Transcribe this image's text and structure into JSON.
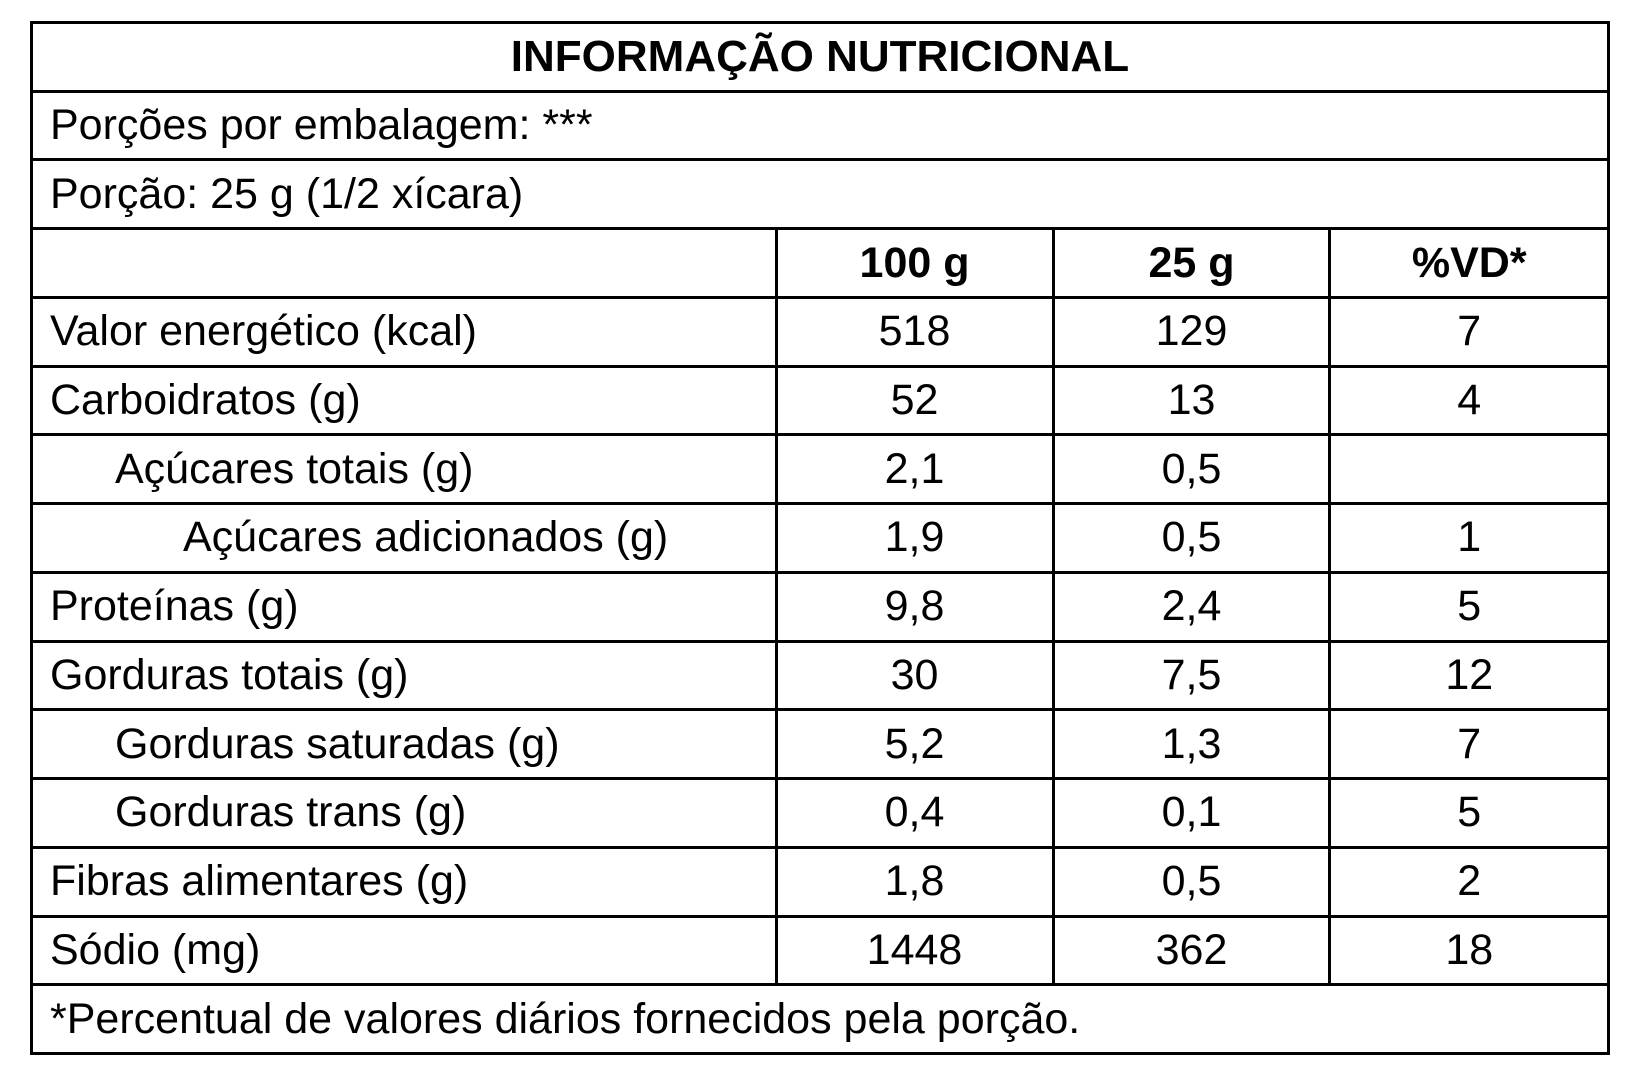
{
  "title": "INFORMAÇÃO NUTRICIONAL",
  "servings_per_package": "Porções por embalagem: ***",
  "serving_size": "Porção: 25 g (1/2 xícara)",
  "columns": {
    "label": "",
    "per_100g": "100 g",
    "per_25g": "25 g",
    "dv": "%VD*"
  },
  "rows": [
    {
      "label": "Valor energético (kcal)",
      "per_100g": "518",
      "per_25g": "129",
      "dv": "7"
    },
    {
      "label": "Carboidratos (g)",
      "per_100g": "52",
      "per_25g": "13",
      "dv": "4"
    },
    {
      "label": "Açúcares totais (g)",
      "per_100g": "2,1",
      "per_25g": "0,5",
      "dv": ""
    },
    {
      "label": "Açúcares adicionados (g)",
      "per_100g": "1,9",
      "per_25g": "0,5",
      "dv": "1"
    },
    {
      "label": "Proteínas (g)",
      "per_100g": "9,8",
      "per_25g": "2,4",
      "dv": "5"
    },
    {
      "label": "Gorduras totais (g)",
      "per_100g": "30",
      "per_25g": "7,5",
      "dv": "12"
    },
    {
      "label": "Gorduras saturadas (g)",
      "per_100g": "5,2",
      "per_25g": "1,3",
      "dv": "7"
    },
    {
      "label": "Gorduras trans (g)",
      "per_100g": "0,4",
      "per_25g": "0,1",
      "dv": "5"
    },
    {
      "label": "Fibras alimentares (g)",
      "per_100g": "1,8",
      "per_25g": "0,5",
      "dv": "2"
    },
    {
      "label": "Sódio (mg)",
      "per_100g": "1448",
      "per_25g": "362",
      "dv": "18"
    }
  ],
  "footnote": "*Percentual de valores diários fornecidos pela porção."
}
